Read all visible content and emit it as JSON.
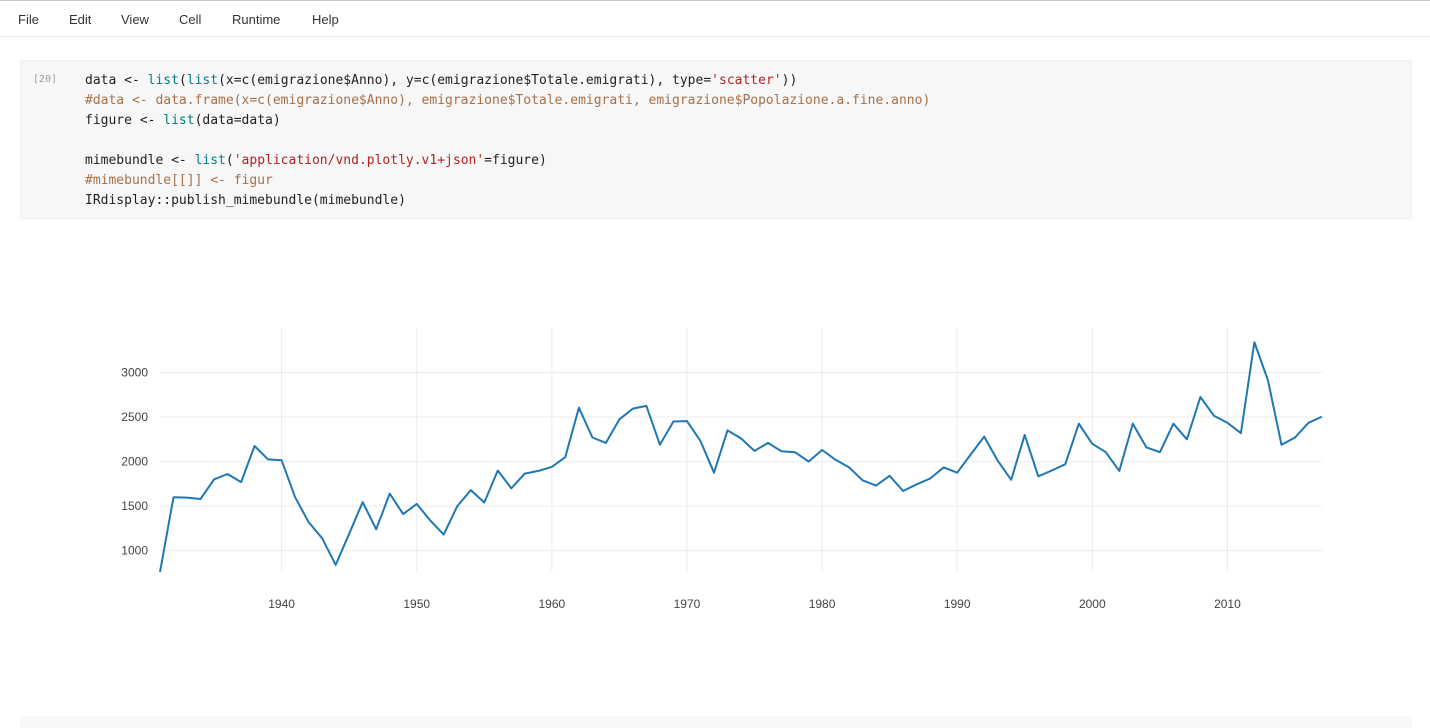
{
  "menu": {
    "items": [
      "File",
      "Edit",
      "View",
      "Cell",
      "Runtime",
      "Help"
    ]
  },
  "cell": {
    "prompt": "[20]",
    "code": [
      [
        {
          "t": "data <- ",
          "c": ""
        },
        {
          "t": "list",
          "c": "kw"
        },
        {
          "t": "(",
          "c": ""
        },
        {
          "t": "list",
          "c": "kw"
        },
        {
          "t": "(x=c(emigrazione$Anno), y=c(emigrazione$Totale.emigrati), type=",
          "c": ""
        },
        {
          "t": "'scatter'",
          "c": "str"
        },
        {
          "t": "))",
          "c": ""
        }
      ],
      [
        {
          "t": "#data <- data.frame(x=c(emigrazione$Anno), emigrazione$Totale.emigrati, emigrazione$Popolazione.a.fine.anno)",
          "c": "cm"
        }
      ],
      [
        {
          "t": "figure <- ",
          "c": ""
        },
        {
          "t": "list",
          "c": "kw"
        },
        {
          "t": "(data=data)",
          "c": ""
        }
      ],
      [],
      [
        {
          "t": "mimebundle <- ",
          "c": ""
        },
        {
          "t": "list",
          "c": "kw"
        },
        {
          "t": "(",
          "c": ""
        },
        {
          "t": "'application/vnd.plotly.v1+json'",
          "c": "str"
        },
        {
          "t": "=figure)",
          "c": ""
        }
      ],
      [
        {
          "t": "#mimebundle[[]] <- figur",
          "c": "cm"
        }
      ],
      [
        {
          "t": "IRdisplay::publish_mimebundle(mimebundle)",
          "c": ""
        }
      ]
    ]
  },
  "chart_data": {
    "type": "line",
    "title": "",
    "xlabel": "",
    "ylabel": "",
    "xlim": [
      1931,
      2017
    ],
    "ylim": [
      760,
      3500
    ],
    "xticks": [
      1940,
      1950,
      1960,
      1970,
      1980,
      1990,
      2000,
      2010
    ],
    "yticks": [
      1000,
      1500,
      2000,
      2500,
      3000
    ],
    "grid": true,
    "line_color": "#1f77b4",
    "series": [
      {
        "x": [
          1931,
          1932,
          1933,
          1934,
          1935,
          1936,
          1937,
          1938,
          1939,
          1940,
          1941,
          1942,
          1943,
          1944,
          1945,
          1946,
          1947,
          1948,
          1949,
          1950,
          1951,
          1952,
          1953,
          1954,
          1955,
          1956,
          1957,
          1958,
          1959,
          1960,
          1961,
          1962,
          1963,
          1964,
          1965,
          1966,
          1967,
          1968,
          1969,
          1970,
          1971,
          1972,
          1973,
          1974,
          1975,
          1976,
          1977,
          1978,
          1979,
          1980,
          1981,
          1982,
          1983,
          1984,
          1985,
          1986,
          1987,
          1988,
          1989,
          1990,
          1991,
          1992,
          1993,
          1994,
          1995,
          1996,
          1997,
          1998,
          1999,
          2000,
          2001,
          2002,
          2003,
          2004,
          2005,
          2006,
          2007,
          2008,
          2009,
          2010,
          2011,
          2012,
          2013,
          2014,
          2015,
          2016,
          2017
        ],
        "y": [
          760,
          1600,
          1595,
          1580,
          1800,
          1860,
          1770,
          2175,
          2025,
          2015,
          1600,
          1320,
          1140,
          840,
          1190,
          1545,
          1240,
          1640,
          1410,
          1525,
          1340,
          1180,
          1500,
          1680,
          1540,
          1900,
          1700,
          1865,
          1895,
          1940,
          2050,
          2605,
          2270,
          2210,
          2475,
          2595,
          2625,
          2190,
          2450,
          2455,
          2230,
          1875,
          2350,
          2260,
          2120,
          2210,
          2115,
          2105,
          2000,
          2130,
          2020,
          1935,
          1790,
          1730,
          1840,
          1670,
          1745,
          1810,
          1935,
          1875,
          2080,
          2280,
          2010,
          1795,
          2300,
          1835,
          1900,
          1970,
          2425,
          2200,
          2105,
          1895,
          2425,
          2160,
          2105,
          2425,
          2250,
          2725,
          2515,
          2435,
          2320,
          3340,
          2910,
          2190,
          2270,
          2435,
          2505
        ]
      }
    ]
  }
}
